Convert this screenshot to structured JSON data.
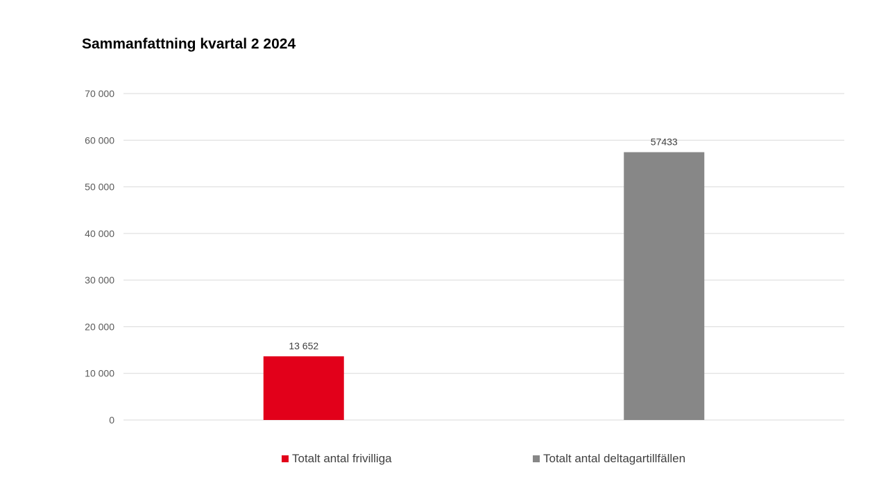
{
  "chart_data": {
    "type": "bar",
    "title": "Sammanfattning kvartal 2 2024",
    "xlabel": "",
    "ylabel": "",
    "ylim": [
      0,
      70000
    ],
    "yticks": [
      0,
      10000,
      20000,
      30000,
      40000,
      50000,
      60000,
      70000
    ],
    "ytick_labels": [
      "0",
      "10 000",
      "20 000",
      "30 000",
      "40 000",
      "50 000",
      "60 000",
      "70 000"
    ],
    "grid": true,
    "legend_position": "bottom",
    "series": [
      {
        "name": "Totalt antal frivilliga",
        "value": 13652,
        "data_label": "13 652",
        "color": "#e2001a"
      },
      {
        "name": "Totalt antal deltagartillfällen",
        "value": 57433,
        "data_label": "57433",
        "color": "#878787"
      }
    ]
  }
}
